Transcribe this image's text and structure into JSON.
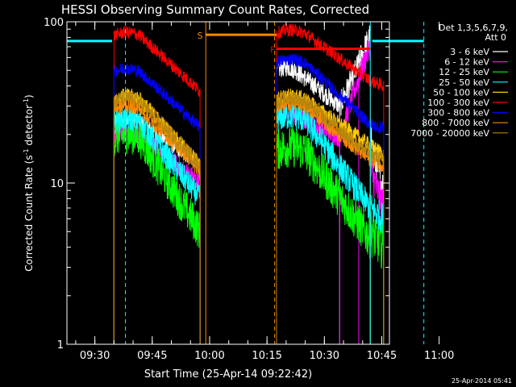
{
  "chart_data": {
    "type": "line",
    "title": "HESSI Observing Summary Count Rates, Corrected",
    "xlabel": "Start Time (25-Apr-14 09:22:42)",
    "ylabel_main": "Corrected Count Rate (s",
    "ylabel_sup1": "-1",
    "ylabel_mid": " detector",
    "ylabel_sup2": "-1",
    "ylabel_end": ")",
    "y_scale": "log",
    "ylim": [
      1,
      100
    ],
    "y_ticks": [
      {
        "value": 1,
        "label": "1"
      },
      {
        "value": 10,
        "label": "10"
      },
      {
        "value": 100,
        "label": "100"
      }
    ],
    "xlim_min": [
      22.7,
      107
    ],
    "x_ticks": [
      {
        "value": 30,
        "label": "09:30"
      },
      {
        "value": 45,
        "label": "09:45"
      },
      {
        "value": 60,
        "label": "10:00"
      },
      {
        "value": 75,
        "label": "10:15"
      },
      {
        "value": 90,
        "label": "10:30"
      },
      {
        "value": 105,
        "label": "10:45"
      },
      {
        "value": 120,
        "label": "11:00"
      }
    ],
    "x_tick_min_minor": 5,
    "timestamp": "25-Apr-2014 05:41",
    "legend_header": [
      "Det 1,3,5,6,7,9,",
      "Att 0"
    ],
    "series": [
      {
        "name": "3 - 6 keV",
        "color": "#ffffff",
        "segments": [
          {
            "x0": 35,
            "x1": 57.5,
            "start": 24,
            "end": 13,
            "hump": 0.6,
            "noise": 0.05
          },
          {
            "x0": 77.5,
            "x1": 94,
            "start": 50,
            "end": 30,
            "hump": 0.3,
            "noise": 0.06
          },
          {
            "x0": 94,
            "x1": 99,
            "start": 30,
            "end": 55,
            "hump": 0,
            "noise": 0.08
          },
          {
            "x0": 99,
            "x1": 102,
            "start": 55,
            "end": 80,
            "hump": 0,
            "noise": 0.1
          },
          {
            "x0": 102,
            "x1": 105.5,
            "start": 18,
            "end": 9,
            "hump": 0,
            "noise": 0.12
          }
        ]
      },
      {
        "name": "6 - 12 keV",
        "color": "#ff00ff",
        "segments": [
          {
            "x0": 35,
            "x1": 57.5,
            "start": 20,
            "end": 10,
            "hump": 0.5,
            "noise": 0.06
          },
          {
            "x0": 77.5,
            "x1": 94,
            "start": 26,
            "end": 19,
            "hump": 0.3,
            "noise": 0.06
          },
          {
            "x0": 94,
            "x1": 99,
            "start": 19,
            "end": 45,
            "hump": 0,
            "noise": 0.07
          },
          {
            "x0": 99,
            "x1": 102,
            "start": 45,
            "end": 72,
            "hump": 0,
            "noise": 0.08
          },
          {
            "x0": 102,
            "x1": 105.5,
            "start": 12,
            "end": 7,
            "hump": 0,
            "noise": 0.12
          }
        ]
      },
      {
        "name": "12 - 25 keV",
        "color": "#00ff00",
        "segments": [
          {
            "x0": 35,
            "x1": 57.5,
            "start": 19,
            "end": 5,
            "hump": 0.5,
            "noise": 0.12
          },
          {
            "x0": 77.5,
            "x1": 102,
            "start": 16,
            "end": 4.5,
            "hump": 0.3,
            "noise": 0.13
          },
          {
            "x0": 102,
            "x1": 105.5,
            "start": 5,
            "end": 4,
            "hump": 0,
            "noise": 0.15
          }
        ]
      },
      {
        "name": "25 - 50 keV",
        "color": "#00ffff",
        "segments": [
          {
            "x0": 35,
            "x1": 57.5,
            "start": 24,
            "end": 8,
            "hump": 0.5,
            "noise": 0.08
          },
          {
            "x0": 77.5,
            "x1": 102,
            "start": 25,
            "end": 7,
            "hump": 0.3,
            "noise": 0.09
          },
          {
            "x0": 102,
            "x1": 105.5,
            "start": 7,
            "end": 6,
            "hump": 0,
            "noise": 0.1
          }
        ]
      },
      {
        "name": "50 - 100 keV",
        "color": "#ffcc00",
        "segments": [
          {
            "x0": 35,
            "x1": 57.5,
            "start": 33,
            "end": 13,
            "hump": 0.5,
            "noise": 0.05
          },
          {
            "x0": 77.5,
            "x1": 102,
            "start": 33,
            "end": 17,
            "hump": 0.3,
            "noise": 0.05
          },
          {
            "x0": 102,
            "x1": 105.5,
            "start": 17,
            "end": 15,
            "hump": 0,
            "noise": 0.05
          }
        ]
      },
      {
        "name": "100 - 300 keV",
        "color": "#ff0000",
        "segments": [
          {
            "x0": 35,
            "x1": 57.5,
            "start": 82,
            "end": 37,
            "hump": 0.5,
            "noise": 0.04
          },
          {
            "x0": 77.5,
            "x1": 102,
            "start": 85,
            "end": 43,
            "hump": 0.3,
            "noise": 0.04
          },
          {
            "x0": 102,
            "x1": 105.5,
            "start": 43,
            "end": 40,
            "hump": 0,
            "noise": 0.04
          }
        ]
      },
      {
        "name": "300 - 800 keV",
        "color": "#0000ff",
        "segments": [
          {
            "x0": 35,
            "x1": 57.5,
            "start": 49,
            "end": 22,
            "hump": 0.5,
            "noise": 0.04
          },
          {
            "x0": 77.5,
            "x1": 102,
            "start": 56,
            "end": 23,
            "hump": 0.3,
            "noise": 0.04
          },
          {
            "x0": 102,
            "x1": 105.5,
            "start": 23,
            "end": 22,
            "hump": 0,
            "noise": 0.04
          }
        ]
      },
      {
        "name": "800 - 7000 keV",
        "color": "#ff8800",
        "segments": [
          {
            "x0": 35,
            "x1": 57.5,
            "start": 29,
            "end": 12,
            "hump": 0.5,
            "noise": 0.05
          },
          {
            "x0": 77.5,
            "x1": 102,
            "start": 30,
            "end": 14,
            "hump": 0.3,
            "noise": 0.05
          },
          {
            "x0": 102,
            "x1": 105.5,
            "start": 14,
            "end": 13,
            "hump": 0,
            "noise": 0.05
          }
        ]
      },
      {
        "name": "7000 - 20000 keV",
        "color": "#b8860b",
        "segments": [
          {
            "x0": 35,
            "x1": 57.5,
            "start": 32,
            "end": 13,
            "hump": 0.5,
            "noise": 0.05
          },
          {
            "x0": 77.5,
            "x1": 102,
            "start": 32,
            "end": 15,
            "hump": 0.3,
            "noise": 0.05
          },
          {
            "x0": 102,
            "x1": 105.5,
            "start": 15,
            "end": 14,
            "hump": 0,
            "noise": 0.05
          }
        ]
      }
    ],
    "annotations": {
      "flag_bars": [
        {
          "x0": 22.7,
          "x1": 34.5,
          "y": 76,
          "color": "#00ffff"
        },
        {
          "x0": 102.5,
          "x1": 116,
          "y": 76,
          "color": "#00ffff"
        },
        {
          "x0": 59,
          "x1": 77.5,
          "y": 83,
          "color": "#ff8800"
        },
        {
          "x0": 77.5,
          "x1": 102,
          "y": 68,
          "color": "#ff0000"
        }
      ],
      "vlines": [
        {
          "x": 22.7,
          "color": "#00ffff",
          "dashed": false
        },
        {
          "x": 38,
          "color": "#00ffff",
          "dashed": true
        },
        {
          "x": 59,
          "color": "#ff8800",
          "dashed": false
        },
        {
          "x": 77,
          "color": "#ff8800",
          "dashed": true
        },
        {
          "x": 102,
          "color": "#00ffff",
          "dashed": false
        },
        {
          "x": 116,
          "color": "#00ffff",
          "dashed": true
        }
      ],
      "markers": [
        {
          "text": "S",
          "x": 57.5,
          "y": 83,
          "color": "#ff8800"
        },
        {
          "text": "F",
          "x": 76.5,
          "y": 68,
          "color": "#ff0000"
        }
      ]
    }
  }
}
